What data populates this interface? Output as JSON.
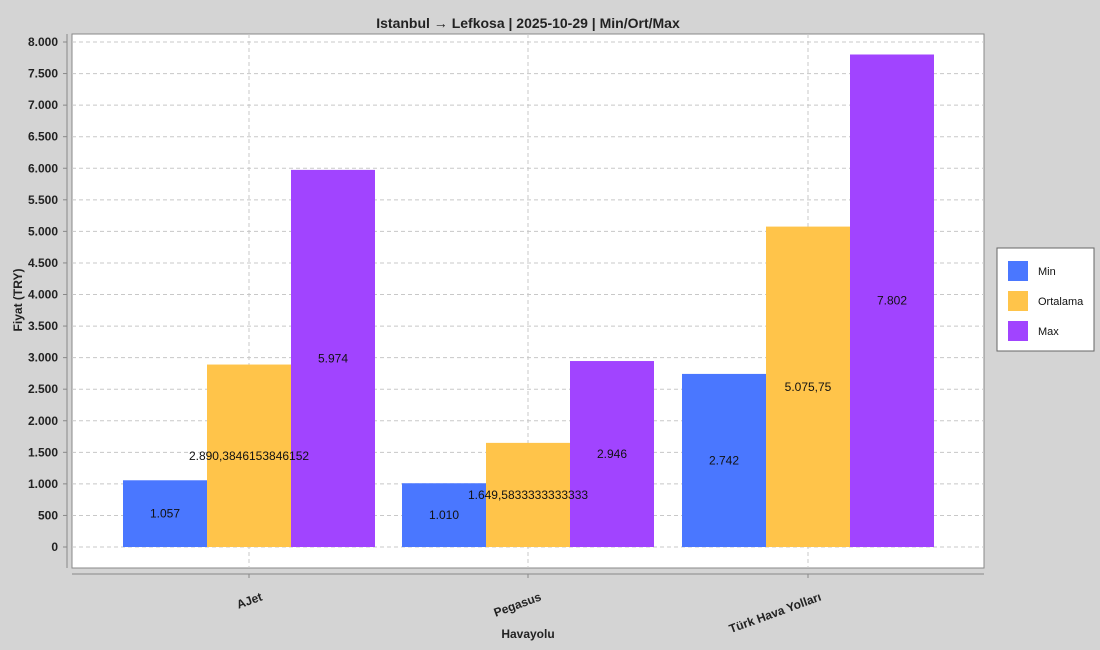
{
  "chart_data": {
    "type": "bar",
    "title": "Istanbul → Lefkosa | 2025-10-29 | Min/Ort/Max",
    "xlabel": "Havayolu",
    "ylabel": "Fiyat (TRY)",
    "ylim": [
      0,
      8000
    ],
    "yticks": [
      0,
      500,
      1000,
      1500,
      2000,
      2500,
      3000,
      3500,
      4000,
      4500,
      5000,
      5500,
      6000,
      6500,
      7000,
      7500,
      8000
    ],
    "ytick_labels": [
      "0",
      "500",
      "1.000",
      "1.500",
      "2.000",
      "2.500",
      "3.000",
      "3.500",
      "4.000",
      "4.500",
      "5.000",
      "5.500",
      "6.000",
      "6.500",
      "7.000",
      "7.500",
      "8.000"
    ],
    "categories": [
      "AJet",
      "Pegasus",
      "Türk Hava Yolları"
    ],
    "grid": true,
    "legend_position": "right",
    "series": [
      {
        "name": "Min",
        "color": "#4a77ff",
        "values": [
          1057,
          1010,
          2742
        ],
        "labels": [
          "1.057",
          "1.010",
          "2.742"
        ]
      },
      {
        "name": "Ortalama",
        "color": "#ffc44a",
        "values": [
          2890.3846153846152,
          1649.5833333333333,
          5075.75
        ],
        "labels": [
          "2.890,3846153846152",
          "1.649,5833333333333",
          "5.075,75"
        ]
      },
      {
        "name": "Max",
        "color": "#a144ff",
        "values": [
          5974,
          2946,
          7802
        ],
        "labels": [
          "5.974",
          "2.946",
          "7.802"
        ]
      }
    ]
  }
}
